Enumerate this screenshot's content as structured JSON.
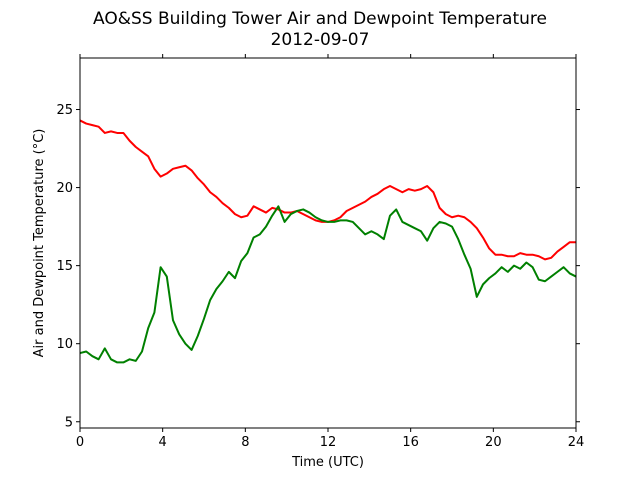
{
  "chart_data": {
    "type": "line",
    "title": "AO&SS Building Tower Air and Dewpoint Temperature",
    "subtitle": "2012-09-07",
    "xlabel": "Time (UTC)",
    "ylabel": "Air and Dewpoint Temperature (°C)",
    "xlim": [
      0,
      24
    ],
    "ylim": [
      4.6,
      28.3
    ],
    "xticks": [
      0,
      4,
      8,
      12,
      16,
      20,
      24
    ],
    "yticks": [
      5,
      10,
      15,
      20,
      25
    ],
    "grid": false,
    "series": [
      {
        "color": "#ff0000",
        "x": [
          0.0,
          0.3,
          0.6,
          0.9,
          1.2,
          1.5,
          1.8,
          2.1,
          2.4,
          2.7,
          3.0,
          3.3,
          3.6,
          3.9,
          4.2,
          4.5,
          4.8,
          5.1,
          5.4,
          5.7,
          6.0,
          6.3,
          6.6,
          6.9,
          7.2,
          7.5,
          7.8,
          8.1,
          8.4,
          8.7,
          9.0,
          9.3,
          9.6,
          9.9,
          10.2,
          10.5,
          10.8,
          11.1,
          11.4,
          11.7,
          12.0,
          12.3,
          12.6,
          12.9,
          13.2,
          13.5,
          13.8,
          14.1,
          14.4,
          14.7,
          15.0,
          15.3,
          15.6,
          15.9,
          16.2,
          16.5,
          16.8,
          17.1,
          17.4,
          17.7,
          18.0,
          18.3,
          18.6,
          18.9,
          19.2,
          19.5,
          19.8,
          20.1,
          20.4,
          20.7,
          21.0,
          21.3,
          21.6,
          21.9,
          22.2,
          22.5,
          22.8,
          23.1,
          23.4,
          23.7,
          24.0
        ],
        "y": [
          24.3,
          24.1,
          24.0,
          23.9,
          23.5,
          23.6,
          23.5,
          23.5,
          23.0,
          22.6,
          22.3,
          22.0,
          21.2,
          20.7,
          20.9,
          21.2,
          21.3,
          21.4,
          21.1,
          20.6,
          20.2,
          19.7,
          19.4,
          19.0,
          18.7,
          18.3,
          18.1,
          18.2,
          18.8,
          18.6,
          18.4,
          18.7,
          18.6,
          18.4,
          18.4,
          18.5,
          18.3,
          18.1,
          17.9,
          17.8,
          17.8,
          17.9,
          18.1,
          18.5,
          18.7,
          18.9,
          19.1,
          19.4,
          19.6,
          19.9,
          20.1,
          19.9,
          19.7,
          19.9,
          19.8,
          19.9,
          20.1,
          19.7,
          18.7,
          18.3,
          18.1,
          18.2,
          18.1,
          17.8,
          17.4,
          16.8,
          16.1,
          15.7,
          15.7,
          15.6,
          15.6,
          15.8,
          15.7,
          15.7,
          15.6,
          15.4,
          15.5,
          15.9,
          16.2,
          16.5,
          16.5
        ]
      },
      {
        "color": "#008000",
        "x": [
          0.0,
          0.3,
          0.6,
          0.9,
          1.2,
          1.5,
          1.8,
          2.1,
          2.4,
          2.7,
          3.0,
          3.3,
          3.6,
          3.9,
          4.2,
          4.5,
          4.8,
          5.1,
          5.4,
          5.7,
          6.0,
          6.3,
          6.6,
          6.9,
          7.2,
          7.5,
          7.8,
          8.1,
          8.4,
          8.7,
          9.0,
          9.3,
          9.6,
          9.9,
          10.2,
          10.5,
          10.8,
          11.1,
          11.4,
          11.7,
          12.0,
          12.3,
          12.6,
          12.9,
          13.2,
          13.5,
          13.8,
          14.1,
          14.4,
          14.7,
          15.0,
          15.3,
          15.6,
          15.9,
          16.2,
          16.5,
          16.8,
          17.1,
          17.4,
          17.7,
          18.0,
          18.3,
          18.6,
          18.9,
          19.2,
          19.5,
          19.8,
          20.1,
          20.4,
          20.7,
          21.0,
          21.3,
          21.6,
          21.9,
          22.2,
          22.5,
          22.8,
          23.1,
          23.4,
          23.7,
          24.0
        ],
        "y": [
          9.4,
          9.5,
          9.2,
          9.0,
          9.7,
          9.0,
          8.8,
          8.8,
          9.0,
          8.9,
          9.5,
          11.0,
          12.0,
          14.9,
          14.3,
          11.5,
          10.6,
          10.0,
          9.6,
          10.5,
          11.6,
          12.8,
          13.5,
          14.0,
          14.6,
          14.2,
          15.3,
          15.8,
          16.8,
          17.0,
          17.5,
          18.2,
          18.8,
          17.8,
          18.3,
          18.5,
          18.6,
          18.4,
          18.1,
          17.9,
          17.8,
          17.8,
          17.9,
          17.9,
          17.8,
          17.4,
          17.0,
          17.2,
          17.0,
          16.7,
          18.2,
          18.6,
          17.8,
          17.6,
          17.4,
          17.2,
          16.6,
          17.4,
          17.8,
          17.7,
          17.5,
          16.7,
          15.7,
          14.8,
          13.0,
          13.8,
          14.2,
          14.5,
          14.9,
          14.6,
          15.0,
          14.8,
          15.2,
          14.9,
          14.1,
          14.0,
          14.3,
          14.6,
          14.9,
          14.5,
          14.3
        ]
      }
    ]
  }
}
